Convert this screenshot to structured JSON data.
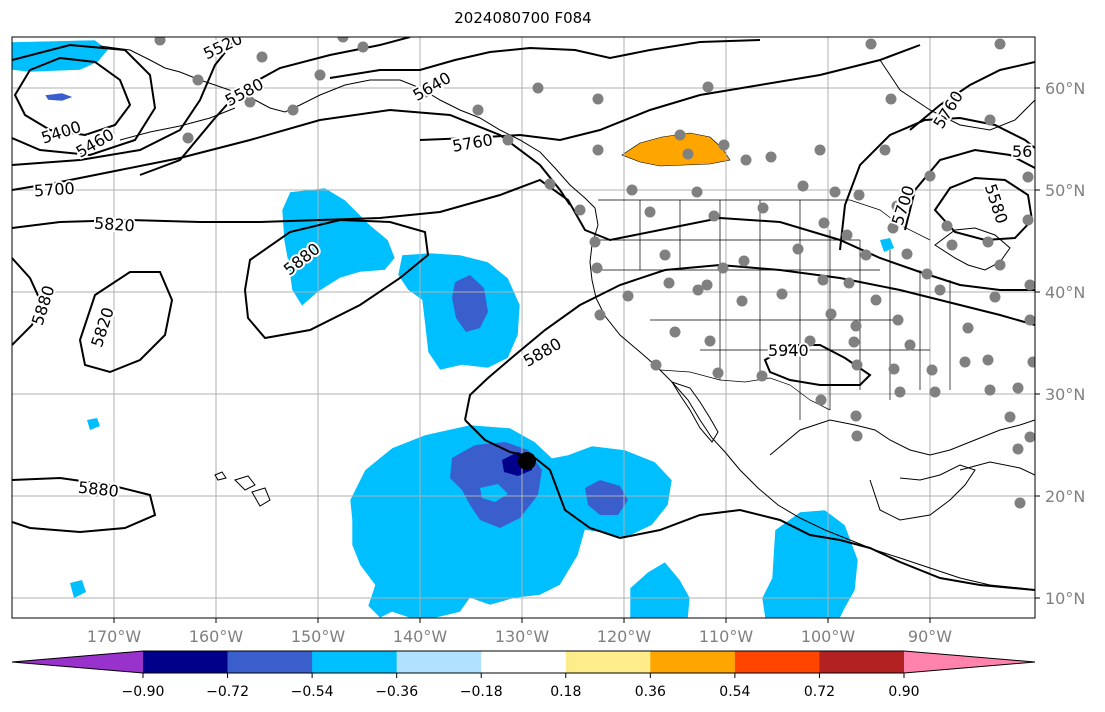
{
  "title": "2024080700 F084",
  "lat_labels": [
    "60°N",
    "50°N",
    "40°N",
    "30°N",
    "20°N",
    "10°N"
  ],
  "lon_labels": [
    "170°W",
    "160°W",
    "150°W",
    "140°W",
    "130°W",
    "120°W",
    "110°W",
    "100°W",
    "90°W"
  ],
  "colorbar": {
    "ticks": [
      "−0.90",
      "−0.72",
      "−0.54",
      "−0.36",
      "−0.18",
      "0.18",
      "0.36",
      "0.54",
      "0.72",
      "0.90"
    ],
    "colors": [
      "#9932CC",
      "#00008B",
      "#3A5FCD",
      "#00BFFF",
      "#B0E2FF",
      "#FFFFFF",
      "#FFEC8B",
      "#FFA500",
      "#FF4500",
      "#B22222",
      "#FF83AC"
    ]
  },
  "contour_labels": [
    "5520",
    "5580",
    "5640",
    "5400",
    "5460",
    "5760",
    "5700",
    "5820",
    "5880",
    "5880",
    "5820",
    "5880",
    "5880",
    "5940",
    "5760",
    "5700",
    "5580",
    "56"
  ],
  "colors": {
    "anomaly_light_blue": "#00BFFF",
    "anomaly_mid_blue": "#3A5FCD",
    "anomaly_dark_blue": "#00008B",
    "anomaly_orange": "#FFA500",
    "station_dot": "#808080",
    "grid": "#B0B0B0"
  }
}
